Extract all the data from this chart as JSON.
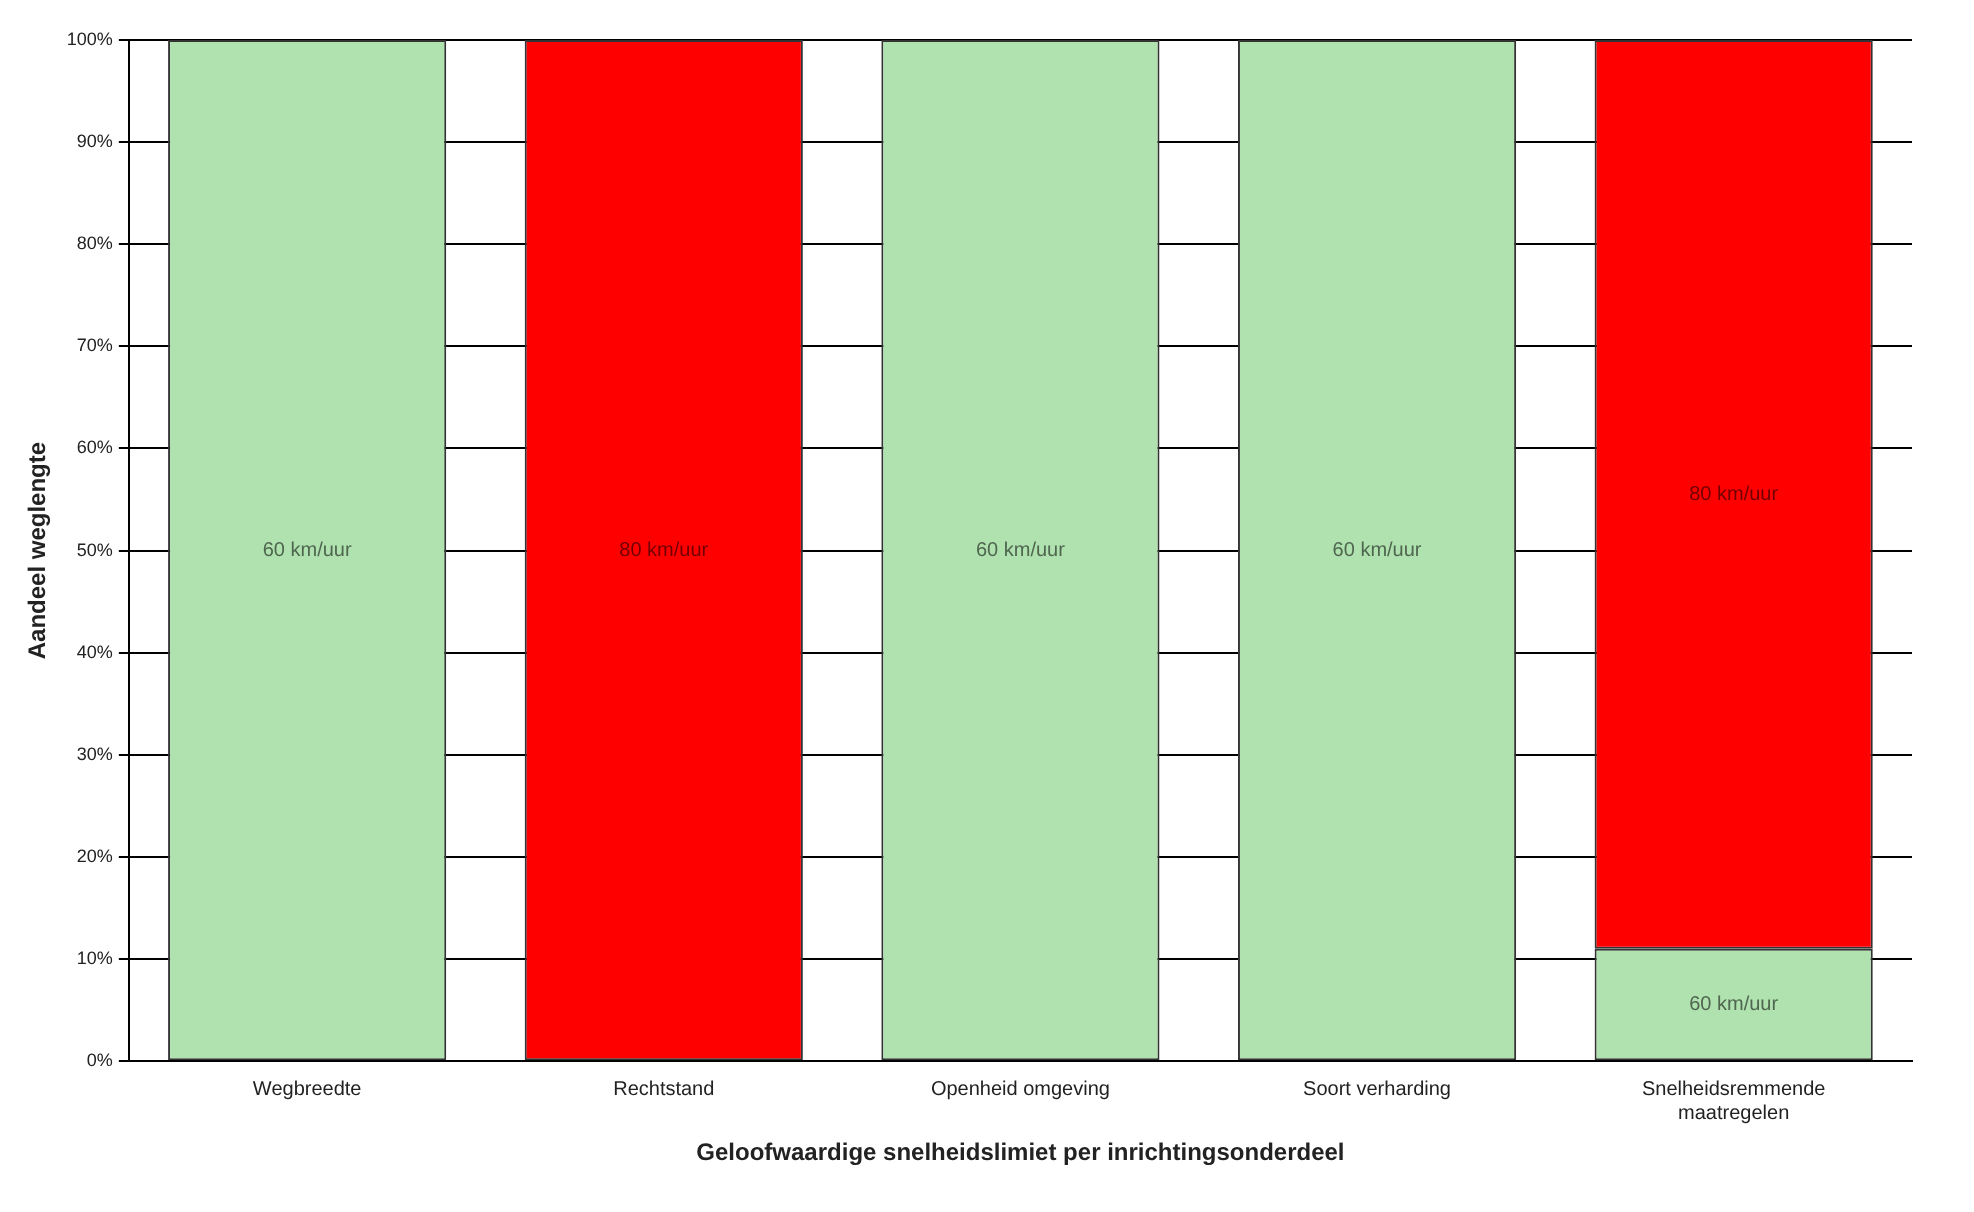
{
  "chart_data": {
    "type": "bar",
    "stacked": true,
    "xlabel": "Geloofwaardige snelheidslimiet per inrichtingsonderdeel",
    "ylabel": "Aandeel weglengte",
    "categories": [
      "Wegbreedte",
      "Rechtstand",
      "Openheid omgeving",
      "Soort verharding",
      "Snelheidsremmende maatregelen"
    ],
    "series": [
      {
        "name": "60 km/uur",
        "color": "#b0e2b0",
        "values": [
          100,
          0,
          100,
          100,
          11
        ]
      },
      {
        "name": "80 km/uur",
        "color": "#ff0000",
        "values": [
          0,
          100,
          0,
          0,
          89
        ]
      }
    ],
    "ylim": [
      0,
      100
    ],
    "yticks": [
      {
        "value": 0,
        "label": "0%"
      },
      {
        "value": 10,
        "label": "10%"
      },
      {
        "value": 20,
        "label": "20%"
      },
      {
        "value": 30,
        "label": "30%"
      },
      {
        "value": 40,
        "label": "40%"
      },
      {
        "value": 50,
        "label": "50%"
      },
      {
        "value": 60,
        "label": "60%"
      },
      {
        "value": 70,
        "label": "70%"
      },
      {
        "value": 80,
        "label": "80%"
      },
      {
        "value": 90,
        "label": "90%"
      },
      {
        "value": 100,
        "label": "100%"
      }
    ],
    "grid": "y",
    "legend": false
  }
}
